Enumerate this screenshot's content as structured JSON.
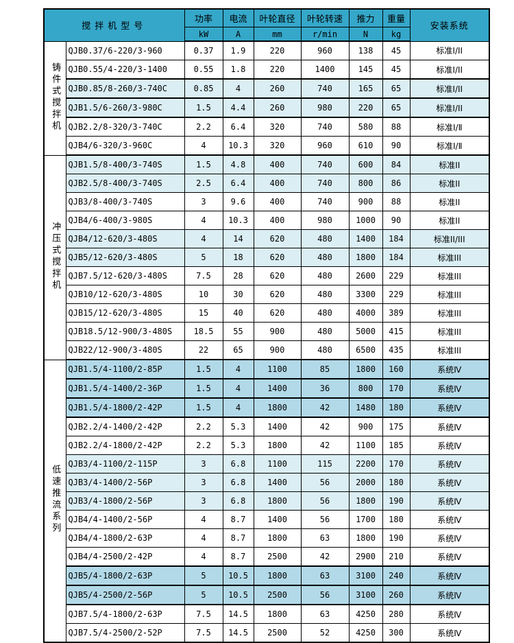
{
  "colors": {
    "header_bg": "#35a7c9",
    "row_pale_blue": "#daeef3",
    "row_medium_blue": "#b2d9e8",
    "grid_line": "#000000"
  },
  "table": {
    "header": {
      "model_label": "搅拌机型号",
      "install_label": "安装系统",
      "columns": [
        {
          "name": "功率",
          "unit": "kW"
        },
        {
          "name": "电流",
          "unit": "A"
        },
        {
          "name": "叶轮直径",
          "unit": "mm"
        },
        {
          "name": "叶轮转速",
          "unit": "r/min"
        },
        {
          "name": "推力",
          "unit": "N"
        },
        {
          "name": "重量",
          "unit": "kg"
        }
      ]
    },
    "sections": [
      {
        "group": "铸件式搅拌机",
        "rows": [
          {
            "model": "QJB0.37/6-220/3-960",
            "power": "0.37",
            "current": "1.9",
            "diameter": "220",
            "speed": "960",
            "thrust": "138",
            "weight": "45",
            "system": "标准Ⅰ/II",
            "shade": "white"
          },
          {
            "model": "QJB0.55/4-220/3-1400",
            "power": "0.55",
            "current": "1.8",
            "diameter": "220",
            "speed": "1400",
            "thrust": "145",
            "weight": "45",
            "system": "标准Ⅰ/II",
            "shade": "white"
          },
          {
            "model": "QJB0.85/8-260/3-740C",
            "power": "0.85",
            "current": "4",
            "diameter": "260",
            "speed": "740",
            "thrust": "165",
            "weight": "65",
            "system": "标准Ⅰ/II",
            "shade": "pale-strong"
          },
          {
            "model": "QJB1.5/6-260/3-980C",
            "power": "1.5",
            "current": "4.4",
            "diameter": "260",
            "speed": "980",
            "thrust": "220",
            "weight": "65",
            "system": "标准Ⅰ/II",
            "shade": "pale-strong"
          },
          {
            "model": "QJB2.2/8-320/3-740C",
            "power": "2.2",
            "current": "6.4",
            "diameter": "320",
            "speed": "740",
            "thrust": "580",
            "weight": "88",
            "system": "标准I/Ⅱ",
            "shade": "white"
          },
          {
            "model": "QJB4/6-320/3-960C",
            "power": "4",
            "current": "10.3",
            "diameter": "320",
            "speed": "960",
            "thrust": "610",
            "weight": "90",
            "system": "标准I/Ⅱ",
            "shade": "white"
          }
        ]
      },
      {
        "group": "冲压式搅拌机",
        "rows": [
          {
            "model": "QJB1.5/8-400/3-740S",
            "power": "1.5",
            "current": "4.8",
            "diameter": "400",
            "speed": "740",
            "thrust": "600",
            "weight": "84",
            "system": "标准II",
            "shade": "pale"
          },
          {
            "model": "QJB2.5/8-400/3-740S",
            "power": "2.5",
            "current": "6.4",
            "diameter": "400",
            "speed": "740",
            "thrust": "800",
            "weight": "86",
            "system": "标准II",
            "shade": "pale"
          },
          {
            "model": "QJB3/8-400/3-740S",
            "power": "3",
            "current": "9.6",
            "diameter": "400",
            "speed": "740",
            "thrust": "900",
            "weight": "88",
            "system": "标准II",
            "shade": "white"
          },
          {
            "model": "QJB4/6-400/3-980S",
            "power": "4",
            "current": "10.3",
            "diameter": "400",
            "speed": "980",
            "thrust": "1000",
            "weight": "90",
            "system": "标准II",
            "shade": "white"
          },
          {
            "model": "QJB4/12-620/3-480S",
            "power": "4",
            "current": "14",
            "diameter": "620",
            "speed": "480",
            "thrust": "1400",
            "weight": "184",
            "system": "标准II/III",
            "shade": "pale"
          },
          {
            "model": "QJB5/12-620/3-480S",
            "power": "5",
            "current": "18",
            "diameter": "620",
            "speed": "480",
            "thrust": "1800",
            "weight": "184",
            "system": "标准III",
            "shade": "pale"
          },
          {
            "model": "QJB7.5/12-620/3-480S",
            "power": "7.5",
            "current": "28",
            "diameter": "620",
            "speed": "480",
            "thrust": "2600",
            "weight": "229",
            "system": "标准III",
            "shade": "white"
          },
          {
            "model": "QJB10/12-620/3-480S",
            "power": "10",
            "current": "30",
            "diameter": "620",
            "speed": "480",
            "thrust": "3300",
            "weight": "229",
            "system": "标准III",
            "shade": "white"
          },
          {
            "model": "QJB15/12-620/3-480S",
            "power": "15",
            "current": "40",
            "diameter": "620",
            "speed": "480",
            "thrust": "4000",
            "weight": "389",
            "system": "标准III",
            "shade": "white"
          },
          {
            "model": "QJB18.5/12-900/3-480S",
            "power": "18.5",
            "current": "55",
            "diameter": "900",
            "speed": "480",
            "thrust": "5000",
            "weight": "415",
            "system": "标准III",
            "shade": "white"
          },
          {
            "model": "QJB22/12-900/3-480S",
            "power": "22",
            "current": "65",
            "diameter": "900",
            "speed": "480",
            "thrust": "6500",
            "weight": "435",
            "system": "标准III",
            "shade": "white"
          }
        ]
      },
      {
        "group": "低速推流系列",
        "rows": [
          {
            "model": "QJB1.5/4-1100/2-85P",
            "power": "1.5",
            "current": "4",
            "diameter": "1100",
            "speed": "85",
            "thrust": "1800",
            "weight": "160",
            "system": "系统Ⅳ",
            "shade": "medium"
          },
          {
            "model": "QJB1.5/4-1400/2-36P",
            "power": "1.5",
            "current": "4",
            "diameter": "1400",
            "speed": "36",
            "thrust": "800",
            "weight": "170",
            "system": "系统Ⅳ",
            "shade": "medium"
          },
          {
            "model": "QJB1.5/4-1800/2-42P",
            "power": "1.5",
            "current": "4",
            "diameter": "1800",
            "speed": "42",
            "thrust": "1480",
            "weight": "180",
            "system": "系统Ⅳ",
            "shade": "medium"
          },
          {
            "model": "QJB2.2/4-1400/2-42P",
            "power": "2.2",
            "current": "5.3",
            "diameter": "1400",
            "speed": "42",
            "thrust": "900",
            "weight": "175",
            "system": "系统Ⅳ",
            "shade": "white"
          },
          {
            "model": "QJB2.2/4-1800/2-42P",
            "power": "2.2",
            "current": "5.3",
            "diameter": "1800",
            "speed": "42",
            "thrust": "1100",
            "weight": "185",
            "system": "系统Ⅳ",
            "shade": "white"
          },
          {
            "model": "QJB3/4-1100/2-115P",
            "power": "3",
            "current": "6.8",
            "diameter": "1100",
            "speed": "115",
            "thrust": "2200",
            "weight": "170",
            "system": "系统Ⅳ",
            "shade": "pale"
          },
          {
            "model": "QJB3/4-1400/2-56P",
            "power": "3",
            "current": "6.8",
            "diameter": "1400",
            "speed": "56",
            "thrust": "2000",
            "weight": "180",
            "system": "系统Ⅳ",
            "shade": "pale"
          },
          {
            "model": "QJB3/4-1800/2-56P",
            "power": "3",
            "current": "6.8",
            "diameter": "1800",
            "speed": "56",
            "thrust": "1800",
            "weight": "190",
            "system": "系统Ⅳ",
            "shade": "pale"
          },
          {
            "model": "QJB4/4-1400/2-56P",
            "power": "4",
            "current": "8.7",
            "diameter": "1400",
            "speed": "56",
            "thrust": "1700",
            "weight": "180",
            "system": "系统Ⅳ",
            "shade": "white"
          },
          {
            "model": "QJB4/4-1800/2-63P",
            "power": "4",
            "current": "8.7",
            "diameter": "1800",
            "speed": "63",
            "thrust": "1800",
            "weight": "190",
            "system": "系统Ⅳ",
            "shade": "white"
          },
          {
            "model": "QJB4/4-2500/2-42P",
            "power": "4",
            "current": "8.7",
            "diameter": "2500",
            "speed": "42",
            "thrust": "2900",
            "weight": "210",
            "system": "系统Ⅳ",
            "shade": "white"
          },
          {
            "model": "QJB5/4-1800/2-63P",
            "power": "5",
            "current": "10.5",
            "diameter": "1800",
            "speed": "63",
            "thrust": "3100",
            "weight": "240",
            "system": "系统Ⅳ",
            "shade": "medium"
          },
          {
            "model": "QJB5/4-2500/2-56P",
            "power": "5",
            "current": "10.5",
            "diameter": "2500",
            "speed": "56",
            "thrust": "3100",
            "weight": "260",
            "system": "系统Ⅳ",
            "shade": "medium"
          },
          {
            "model": "QJB7.5/4-1800/2-63P",
            "power": "7.5",
            "current": "14.5",
            "diameter": "1800",
            "speed": "63",
            "thrust": "4250",
            "weight": "280",
            "system": "系统Ⅳ",
            "shade": "white"
          },
          {
            "model": "QJB7.5/4-2500/2-52P",
            "power": "7.5",
            "current": "14.5",
            "diameter": "2500",
            "speed": "52",
            "thrust": "4250",
            "weight": "300",
            "system": "系统Ⅳ",
            "shade": "white"
          }
        ]
      }
    ]
  }
}
